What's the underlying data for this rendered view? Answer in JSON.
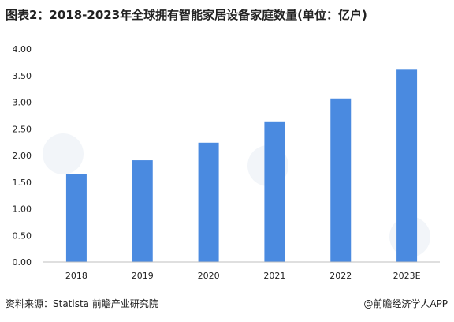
{
  "title": "图表2：2018-2023年全球拥有智能家居设备家庭数量(单位：亿户)",
  "footer": {
    "source": "资料来源：Statista 前瞻产业研究院",
    "brand": "@前瞻经济学人APP"
  },
  "colors": {
    "bar": "#4a8ae0",
    "axis": "#bfbfbf"
  },
  "chart_data": {
    "type": "bar",
    "title": "图表2：2018-2023年全球拥有智能家居设备家庭数量(单位：亿户)",
    "xlabel": "",
    "ylabel": "",
    "categories": [
      "2018",
      "2019",
      "2020",
      "2021",
      "2022",
      "2023E"
    ],
    "values": [
      1.65,
      1.91,
      2.24,
      2.64,
      3.07,
      3.61
    ],
    "ylim": [
      0,
      4
    ],
    "yticks": [
      "0.00",
      "0.50",
      "1.00",
      "1.50",
      "2.00",
      "2.50",
      "3.00",
      "3.50",
      "4.00"
    ],
    "grid": false,
    "legend": "none"
  }
}
